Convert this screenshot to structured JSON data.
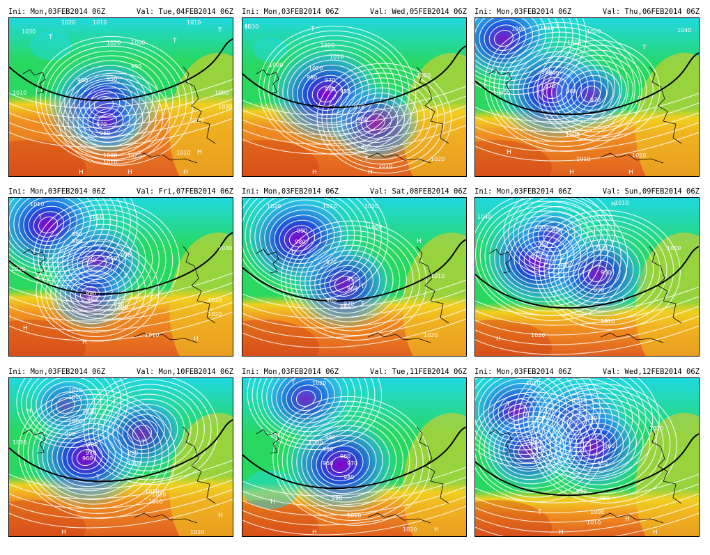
{
  "colors": {
    "deep_low": "#8a00c8",
    "low": "#1e40e0",
    "mid_blue": "#30a0f0",
    "cyan": "#20d8e0",
    "green": "#28d860",
    "yellow": "#f0d020",
    "orange": "#f09020",
    "deep_orange": "#e06020",
    "red": "#c83010",
    "contour": "#ffffff",
    "front_line": "#000000"
  },
  "panels": [
    {
      "ini": "Ini: Mon,03FEB2014 06Z",
      "val": "Val: Tue,04FEB2014 06Z",
      "labels": [
        "1030",
        "1020",
        "1010",
        "1020",
        "1000",
        "990",
        "980",
        "950",
        "970",
        "960",
        "1000",
        "1010",
        "1020",
        "1010",
        "1030",
        "1010",
        "1000",
        "1020",
        "1010",
        "T",
        "T",
        "H",
        "H",
        "H",
        "H",
        "T"
      ]
    },
    {
      "ini": "Ini: Mon,03FEB2014 06Z",
      "val": "Val: Wed,05FEB2014 06Z",
      "labels": [
        "1030",
        "1020",
        "1010",
        "990",
        "970",
        "960",
        "950",
        "970",
        "960",
        "990",
        "1010",
        "1020",
        "1020",
        "1000",
        "1020",
        "T",
        "T",
        "H",
        "H",
        "H"
      ]
    },
    {
      "ini": "Ini: Mon,03FEB2014 06Z",
      "val": "Val: Thu,06FEB2014 06Z",
      "labels": [
        "1000",
        "1010",
        "1010",
        "1020",
        "980",
        "990",
        "970",
        "960",
        "970",
        "1000",
        "1010",
        "1020",
        "1000",
        "1040",
        "T",
        "T",
        "H",
        "H",
        "H"
      ]
    },
    {
      "ini": "Ini: Mon,03FEB2014 06Z",
      "val": "Val: Fri,07FEB2014 06Z",
      "labels": [
        "1010",
        "1010",
        "980",
        "980",
        "970",
        "960",
        "990",
        "980",
        "990",
        "970",
        "1000",
        "1030",
        "1020",
        "1020",
        "1010",
        "1020",
        "T",
        "T",
        "H",
        "H",
        "H"
      ]
    },
    {
      "ini": "Ini: Mon,03FEB2014 06Z",
      "val": "Val: Sat,08FEB2014 06Z",
      "labels": [
        "1020",
        "1010",
        "1020",
        "990",
        "980",
        "970",
        "950",
        "960",
        "980",
        "970",
        "980",
        "1000",
        "1010",
        "1020",
        "T",
        "T",
        "H",
        "H"
      ]
    },
    {
      "ini": "Ini: Mon,03FEB2014 06Z",
      "val": "Val: Sun,09FEB2014 06Z",
      "labels": [
        "1040",
        "1010",
        "1000",
        "990",
        "980",
        "970",
        "960",
        "970",
        "950",
        "990",
        "1000",
        "1010",
        "1020",
        "T",
        "T",
        "H",
        "H"
      ]
    },
    {
      "ini": "Ini: Mon,03FEB2014 06Z",
      "val": "Val: Mon,10FEB2014 06Z",
      "labels": [
        "1010",
        "1010",
        "1020",
        "1000",
        "990",
        "980",
        "970",
        "960",
        "990",
        "1000",
        "1010",
        "1020",
        "1030",
        "1010",
        "1020",
        "T",
        "T",
        "H",
        "H",
        "H"
      ]
    },
    {
      "ini": "Ini: Mon,03FEB2014 06Z",
      "val": "Val: Tue,11FEB2014 06Z",
      "labels": [
        "1020",
        "1010",
        "1000",
        "990",
        "980",
        "960",
        "950",
        "970",
        "980",
        "990",
        "1010",
        "1020",
        "T",
        "H",
        "H",
        "H"
      ]
    },
    {
      "ini": "Ini: Mon,03FEB2014 06Z",
      "val": "Val: Wed,12FEB2014 06Z",
      "labels": [
        "1020",
        "1010",
        "1000",
        "990",
        "980",
        "970",
        "960",
        "950",
        "980",
        "990",
        "1000",
        "1010",
        "1020",
        "T",
        "T",
        "H",
        "H",
        "H"
      ]
    }
  ]
}
